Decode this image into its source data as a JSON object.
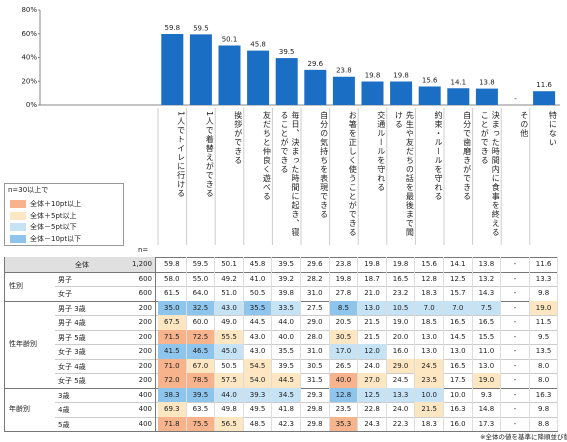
{
  "chart_data": {
    "type": "bar",
    "categories": [
      "1人でトイレに行ける",
      "1人で着替えができる",
      "挨拶ができる",
      "友だちと仲良く遊べる",
      "毎日、決まった時間に起き、寝ることができる",
      "自分の気持ちを表現できる",
      "お箸を正しく使うことができる",
      "交通ルールを守れる",
      "先生や友だちの話を最後まで聞ける",
      "約束・ルールを守れる",
      "自分で歯磨きができる",
      "決まった時間内に食事を終えることができる",
      "その他",
      "特にない"
    ],
    "values": [
      59.8,
      59.5,
      50.1,
      45.8,
      39.5,
      29.6,
      23.8,
      19.8,
      19.8,
      15.6,
      14.1,
      13.8,
      null,
      11.6
    ],
    "value_labels": [
      "59.8",
      "59.5",
      "50.1",
      "45.8",
      "39.5",
      "29.6",
      "23.8",
      "19.8",
      "19.8",
      "15.6",
      "14.1",
      "13.8",
      "-",
      "11.6"
    ],
    "color": "#1a6ec4",
    "ylim": [
      0,
      80
    ],
    "yticks": [
      {
        "value": 0,
        "label": "0%"
      },
      {
        "value": 20,
        "label": "20%"
      },
      {
        "value": 40,
        "label": "40%"
      },
      {
        "value": 60,
        "label": "60%"
      },
      {
        "value": 80,
        "label": "80%"
      }
    ]
  },
  "legend": {
    "title": "n=30以上で",
    "items": [
      {
        "label": "全体＋10pt以上",
        "color": "#f6b38c"
      },
      {
        "label": "全体＋5pt以上",
        "color": "#fde6c2"
      },
      {
        "label": "全体－5pt以下",
        "color": "#c6e2f5"
      },
      {
        "label": "全体－10pt以下",
        "color": "#8ec5ec"
      }
    ]
  },
  "table": {
    "n_header": "n=",
    "total": {
      "label": "全体",
      "n": "1,200",
      "cells": [
        "59.8",
        "59.5",
        "50.1",
        "45.8",
        "39.5",
        "29.6",
        "23.8",
        "19.8",
        "19.8",
        "15.6",
        "14.1",
        "13.8",
        "-",
        "11.6"
      ]
    },
    "groups": [
      {
        "label": "性別",
        "rows": [
          {
            "label": "男子",
            "n": "600",
            "cells": [
              "58.0",
              "55.0",
              "49.2",
              "41.0",
              "39.2",
              "28.2",
              "19.8",
              "18.7",
              "16.5",
              "12.8",
              "12.5",
              "13.2",
              "-",
              "13.3"
            ]
          },
          {
            "label": "女子",
            "n": "600",
            "cells": [
              "61.5",
              "64.0",
              "51.0",
              "50.5",
              "39.8",
              "31.0",
              "27.8",
              "21.0",
              "23.2",
              "18.3",
              "15.7",
              "14.3",
              "-",
              "9.8"
            ]
          }
        ]
      },
      {
        "label": "性年齢別",
        "rows": [
          {
            "label": "男子 3歳",
            "n": "200",
            "cells": [
              "35.0",
              "32.5",
              "43.0",
              "35.5",
              "33.5",
              "27.5",
              "8.5",
              "13.0",
              "10.5",
              "7.0",
              "7.0",
              "7.5",
              "-",
              "19.0"
            ]
          },
          {
            "label": "男子 4歳",
            "n": "200",
            "cells": [
              "67.5",
              "60.0",
              "49.0",
              "44.5",
              "44.0",
              "29.0",
              "20.5",
              "21.5",
              "19.0",
              "18.5",
              "16.5",
              "16.5",
              "-",
              "11.5"
            ]
          },
          {
            "label": "男子 5歳",
            "n": "200",
            "cells": [
              "71.5",
              "72.5",
              "55.5",
              "43.0",
              "40.0",
              "28.0",
              "30.5",
              "21.5",
              "20.0",
              "13.0",
              "14.5",
              "15.5",
              "-",
              "9.5"
            ]
          },
          {
            "label": "女子 3歳",
            "n": "200",
            "cells": [
              "41.5",
              "46.5",
              "45.0",
              "43.0",
              "35.5",
              "31.0",
              "17.0",
              "12.0",
              "16.0",
              "13.0",
              "13.0",
              "11.0",
              "-",
              "13.5"
            ]
          },
          {
            "label": "女子 4歳",
            "n": "200",
            "cells": [
              "71.0",
              "67.0",
              "50.5",
              "54.5",
              "39.5",
              "30.5",
              "26.5",
              "24.0",
              "29.0",
              "24.5",
              "16.5",
              "13.0",
              "-",
              "8.0"
            ]
          },
          {
            "label": "女子 5歳",
            "n": "200",
            "cells": [
              "72.0",
              "78.5",
              "57.5",
              "54.0",
              "44.5",
              "31.5",
              "40.0",
              "27.0",
              "24.5",
              "23.5",
              "17.5",
              "19.0",
              "-",
              "8.0"
            ]
          }
        ]
      },
      {
        "label": "年齢別",
        "rows": [
          {
            "label": "3歳",
            "n": "400",
            "cells": [
              "38.3",
              "39.5",
              "44.0",
              "39.3",
              "34.5",
              "29.3",
              "12.8",
              "12.5",
              "13.3",
              "10.0",
              "10.0",
              "9.3",
              "-",
              "16.3"
            ]
          },
          {
            "label": "4歳",
            "n": "400",
            "cells": [
              "69.3",
              "63.5",
              "49.8",
              "49.5",
              "41.8",
              "29.8",
              "23.5",
              "22.8",
              "24.0",
              "21.5",
              "16.3",
              "14.8",
              "-",
              "9.8"
            ]
          },
          {
            "label": "5歳",
            "n": "400",
            "cells": [
              "71.8",
              "75.5",
              "56.5",
              "48.5",
              "42.3",
              "29.8",
              "35.3",
              "24.3",
              "22.3",
              "18.3",
              "16.0",
              "17.3",
              "-",
              "8.8"
            ]
          }
        ]
      }
    ],
    "footnote": "※全体の値を基準に降順並び替え"
  }
}
